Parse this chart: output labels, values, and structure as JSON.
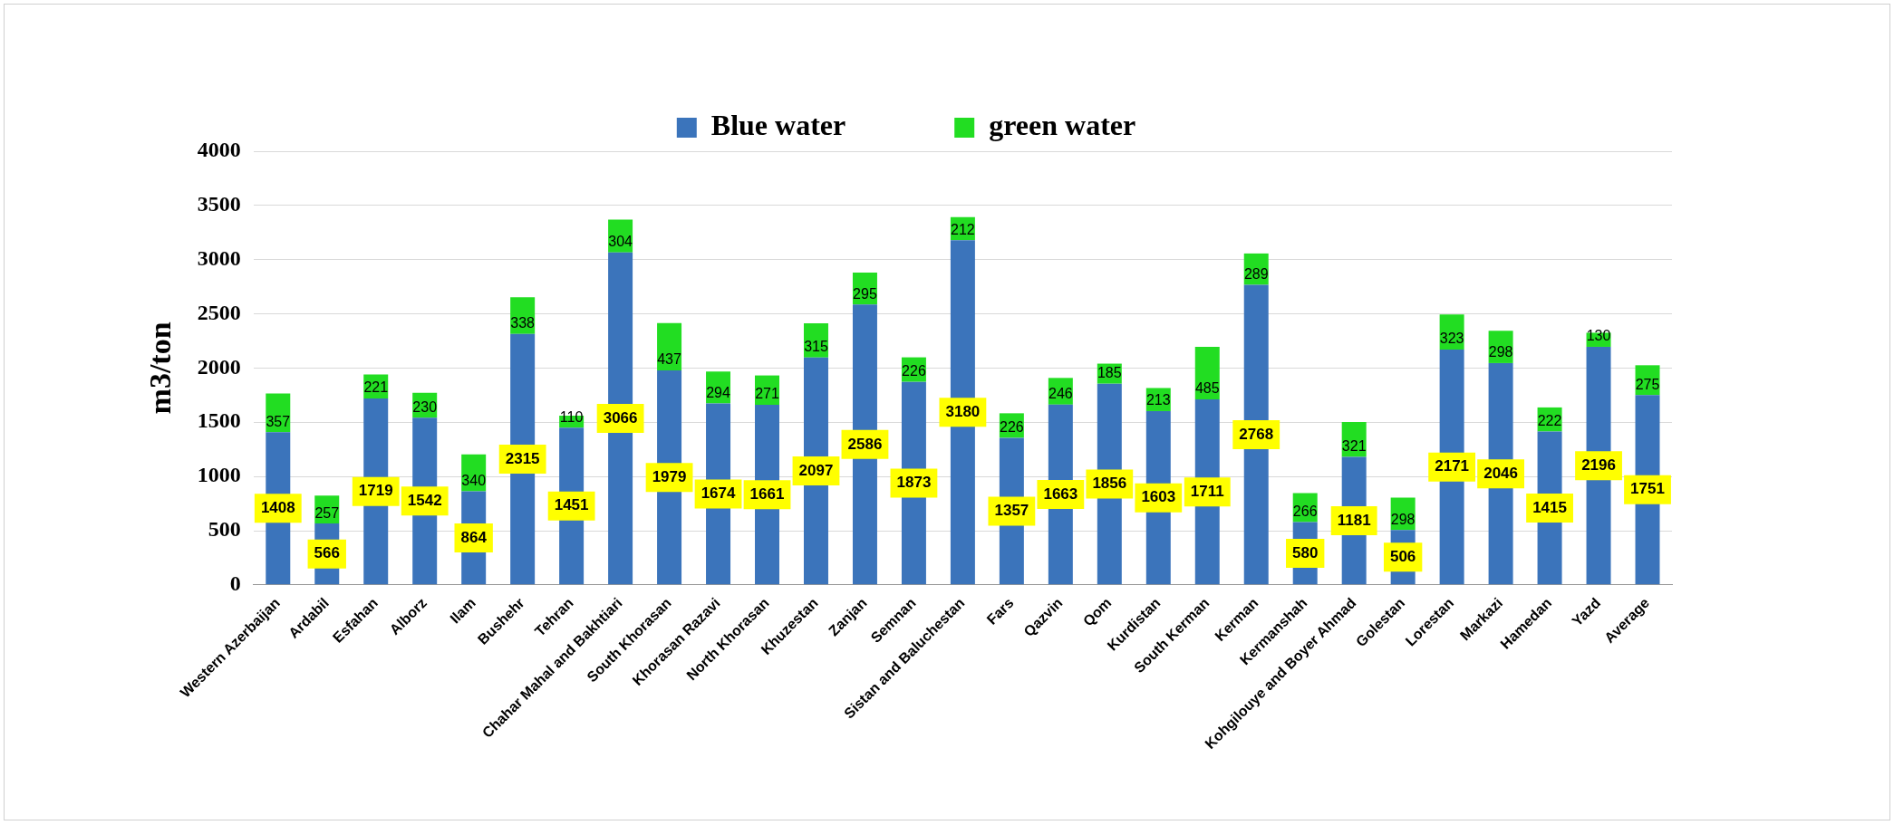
{
  "chart_data": {
    "type": "bar",
    "stacked": true,
    "ylabel": "m3/ton",
    "legend": "top",
    "grid": "y",
    "data_labels": true,
    "categories": [
      "Western Azerbaijan",
      "Ardabil",
      "Esfahan",
      "Alborz",
      "Ilam",
      "Bushehr",
      "Tehran",
      "Chahar Mahal and Bakhtiari",
      "South Khorasan",
      "Khorasan Razavi",
      "North Khorasan",
      "Khuzestan",
      "Zanjan",
      "Semnan",
      "Sistan and Baluchestan",
      "Fars",
      "Qazvin",
      "Qom",
      "Kurdistan",
      "South Kerman",
      "Kerman",
      "Kermanshah",
      "Kohgilouye and Boyer Ahmad",
      "Golestan",
      "Lorestan",
      "Markazi",
      "Hamedan",
      "Yazd",
      "Average"
    ],
    "ylim": [
      0,
      4000
    ],
    "yticks": [
      0,
      500,
      1000,
      1500,
      2000,
      2500,
      3000,
      3500,
      4000
    ],
    "series": [
      {
        "name": "Blue water",
        "color": "#3b74bb",
        "values": [
          1408,
          566,
          1719,
          1542,
          864,
          2315,
          1451,
          3066,
          1979,
          1674,
          1661,
          2097,
          2586,
          1873,
          3180,
          1357,
          1663,
          1856,
          1603,
          1711,
          2768,
          580,
          1181,
          506,
          2171,
          2046,
          1415,
          2196,
          1751
        ]
      },
      {
        "name": "green water",
        "color": "#22dd22",
        "values": [
          357,
          257,
          221,
          230,
          340,
          338,
          110,
          304,
          437,
          294,
          271,
          315,
          295,
          226,
          212,
          226,
          246,
          185,
          213,
          485,
          289,
          266,
          321,
          298,
          323,
          298,
          222,
          130,
          275
        ]
      }
    ]
  }
}
